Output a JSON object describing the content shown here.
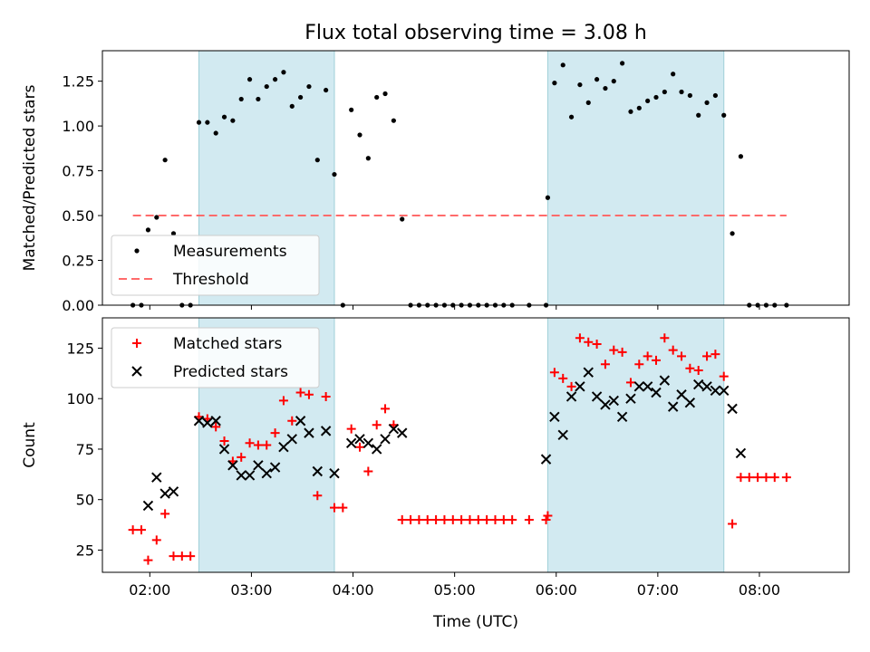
{
  "title": "Flux total observing time = 3.08 h",
  "colors": {
    "measurement": "#000000",
    "threshold": "#ff6b6b",
    "matched": "#ff0000",
    "predicted": "#000000",
    "shade": "#add8e6"
  },
  "chart_data": [
    {
      "type": "scatter",
      "ylabel": "Matched/Predicted stars",
      "ylim": [
        0,
        1.42
      ],
      "yticks": [
        "0.00",
        "0.25",
        "0.50",
        "0.75",
        "1.00",
        "1.25"
      ],
      "xlim": [
        "01:32",
        "08:53"
      ],
      "shaded_intervals": [
        [
          "02:29",
          "03:49"
        ],
        [
          "05:55",
          "07:39"
        ]
      ],
      "legend": {
        "position": "lower-left",
        "entries": [
          "Measurements",
          "Threshold"
        ]
      },
      "threshold": {
        "name": "Threshold",
        "value": 0.5,
        "x_range": [
          "01:50",
          "08:16"
        ]
      },
      "series": [
        {
          "name": "Measurements",
          "x": [
            "01:50",
            "01:55",
            "01:59",
            "02:04",
            "02:09",
            "02:14",
            "02:19",
            "02:24",
            "02:29",
            "02:34",
            "02:39",
            "02:44",
            "02:49",
            "02:54",
            "02:59",
            "03:04",
            "03:09",
            "03:14",
            "03:19",
            "03:24",
            "03:29",
            "03:34",
            "03:39",
            "03:44",
            "03:49",
            "03:54",
            "03:59",
            "04:04",
            "04:09",
            "04:14",
            "04:19",
            "04:24",
            "04:29",
            "04:34",
            "04:39",
            "04:44",
            "04:49",
            "04:54",
            "04:59",
            "05:04",
            "05:09",
            "05:14",
            "05:19",
            "05:24",
            "05:29",
            "05:34",
            "05:44",
            "05:54",
            "05:55",
            "05:59",
            "06:04",
            "06:09",
            "06:14",
            "06:19",
            "06:24",
            "06:29",
            "06:34",
            "06:39",
            "06:44",
            "06:49",
            "06:54",
            "06:59",
            "07:04",
            "07:09",
            "07:14",
            "07:19",
            "07:24",
            "07:29",
            "07:34",
            "07:39",
            "07:44",
            "07:49",
            "07:54",
            "07:59",
            "08:04",
            "08:09",
            "08:16"
          ],
          "y": [
            0,
            0,
            0.42,
            0.49,
            0.81,
            0.4,
            0,
            0,
            1.02,
            1.02,
            0.96,
            1.05,
            1.03,
            1.15,
            1.26,
            1.15,
            1.22,
            1.26,
            1.3,
            1.11,
            1.16,
            1.22,
            0.81,
            1.2,
            0.73,
            0,
            1.09,
            0.95,
            0.82,
            1.16,
            1.18,
            1.03,
            0.48,
            0,
            0,
            0,
            0,
            0,
            0,
            0,
            0,
            0,
            0,
            0,
            0,
            0,
            0,
            0,
            0.6,
            1.24,
            1.34,
            1.05,
            1.23,
            1.13,
            1.26,
            1.21,
            1.25,
            1.35,
            1.08,
            1.1,
            1.14,
            1.16,
            1.19,
            1.29,
            1.19,
            1.17,
            1.06,
            1.13,
            1.17,
            1.06,
            0.4,
            0.83,
            0,
            0,
            0,
            0,
            0
          ]
        }
      ]
    },
    {
      "type": "scatter",
      "ylabel": "Count",
      "xlabel": "Time (UTC)",
      "ylim": [
        14,
        140
      ],
      "yticks": [
        "25",
        "50",
        "75",
        "100",
        "125"
      ],
      "xlim": [
        "01:32",
        "08:53"
      ],
      "xticks": [
        "02:00",
        "03:00",
        "04:00",
        "05:00",
        "06:00",
        "07:00",
        "08:00"
      ],
      "shaded_intervals": [
        [
          "02:29",
          "03:49"
        ],
        [
          "05:55",
          "07:39"
        ]
      ],
      "legend": {
        "position": "top-left",
        "entries": [
          "Matched stars",
          "Predicted stars"
        ]
      },
      "series": [
        {
          "name": "Matched stars",
          "x": [
            "01:50",
            "01:55",
            "01:59",
            "02:04",
            "02:09",
            "02:14",
            "02:19",
            "02:24",
            "02:29",
            "02:34",
            "02:39",
            "02:44",
            "02:49",
            "02:54",
            "02:59",
            "03:04",
            "03:09",
            "03:14",
            "03:19",
            "03:24",
            "03:29",
            "03:34",
            "03:39",
            "03:44",
            "03:49",
            "03:54",
            "03:59",
            "04:04",
            "04:09",
            "04:14",
            "04:19",
            "04:24",
            "04:29",
            "04:34",
            "04:39",
            "04:44",
            "04:49",
            "04:54",
            "04:59",
            "05:04",
            "05:09",
            "05:14",
            "05:19",
            "05:24",
            "05:29",
            "05:34",
            "05:44",
            "05:54",
            "05:55",
            "05:59",
            "06:04",
            "06:09",
            "06:14",
            "06:19",
            "06:24",
            "06:29",
            "06:34",
            "06:39",
            "06:44",
            "06:49",
            "06:54",
            "06:59",
            "07:04",
            "07:09",
            "07:14",
            "07:19",
            "07:24",
            "07:29",
            "07:34",
            "07:39",
            "07:44",
            "07:49",
            "07:54",
            "07:59",
            "08:04",
            "08:09",
            "08:16"
          ],
          "y": [
            35,
            35,
            20,
            30,
            43,
            22,
            22,
            22,
            91,
            90,
            86,
            79,
            69,
            71,
            78,
            77,
            77,
            83,
            99,
            89,
            103,
            102,
            52,
            101,
            46,
            46,
            85,
            76,
            64,
            87,
            95,
            87,
            40,
            40,
            40,
            40,
            40,
            40,
            40,
            40,
            40,
            40,
            40,
            40,
            40,
            40,
            40,
            40,
            42,
            113,
            110,
            106,
            130,
            128,
            127,
            117,
            124,
            123,
            108,
            117,
            121,
            119,
            130,
            124,
            121,
            115,
            114,
            121,
            122,
            111,
            38,
            61,
            61,
            61,
            61,
            61,
            61
          ]
        },
        {
          "name": "Predicted stars",
          "x": [
            "01:59",
            "02:04",
            "02:09",
            "02:14",
            "02:29",
            "02:34",
            "02:39",
            "02:44",
            "02:49",
            "02:54",
            "02:59",
            "03:04",
            "03:09",
            "03:14",
            "03:19",
            "03:24",
            "03:29",
            "03:34",
            "03:39",
            "03:44",
            "03:49",
            "03:59",
            "04:04",
            "04:09",
            "04:14",
            "04:19",
            "04:24",
            "04:29",
            "05:54",
            "05:59",
            "06:04",
            "06:09",
            "06:14",
            "06:19",
            "06:24",
            "06:29",
            "06:34",
            "06:39",
            "06:44",
            "06:49",
            "06:54",
            "06:59",
            "07:04",
            "07:09",
            "07:14",
            "07:19",
            "07:24",
            "07:29",
            "07:34",
            "07:39",
            "07:44",
            "07:49"
          ],
          "y": [
            47,
            61,
            53,
            54,
            89,
            88,
            89,
            75,
            67,
            62,
            62,
            67,
            63,
            66,
            76,
            80,
            89,
            83,
            64,
            84,
            63,
            78,
            80,
            78,
            75,
            80,
            85,
            83,
            70,
            91,
            82,
            101,
            106,
            113,
            101,
            97,
            99,
            91,
            100,
            106,
            106,
            103,
            109,
            96,
            102,
            98,
            107,
            106,
            104,
            104,
            95,
            73
          ]
        }
      ]
    }
  ]
}
